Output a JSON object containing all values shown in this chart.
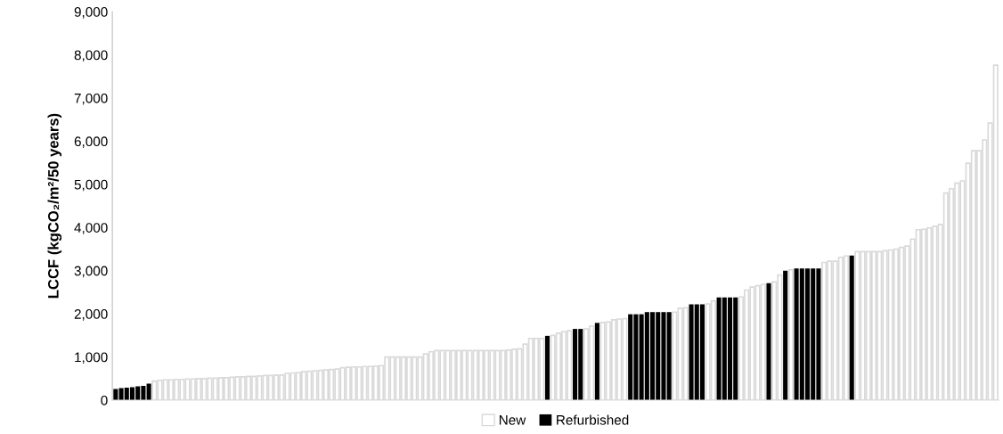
{
  "chart_data": {
    "type": "bar",
    "ylabel": "LCCF (kgCO₂/m²/50 years)",
    "categories": [
      null,
      null,
      null,
      null,
      null,
      null,
      null,
      null,
      null,
      null,
      null,
      null,
      null,
      null,
      null,
      null,
      null,
      null,
      null,
      null,
      null,
      null,
      null,
      null,
      null,
      null,
      null,
      null,
      null,
      null,
      null,
      null,
      null,
      null,
      null,
      null,
      null,
      null,
      null,
      null,
      null,
      null,
      null,
      null,
      null,
      null,
      null,
      null,
      null,
      null,
      null,
      null,
      null,
      null,
      null,
      null,
      null,
      null,
      null,
      null,
      null,
      null,
      null,
      null,
      null,
      null,
      null,
      null,
      null,
      null,
      null,
      null,
      null,
      null,
      null,
      null,
      null,
      null,
      null,
      null,
      null,
      null,
      null,
      null,
      null,
      null,
      null,
      null,
      null,
      null,
      null,
      null,
      null,
      null,
      null,
      null,
      null,
      null,
      null,
      null,
      null,
      null,
      null,
      null,
      null,
      null,
      null,
      null,
      null,
      null,
      null,
      null,
      null,
      null,
      null,
      null,
      null,
      null,
      null,
      null,
      null,
      null,
      null,
      null,
      null,
      null,
      null,
      null,
      null,
      null,
      null,
      null,
      null,
      null,
      null,
      null,
      null,
      null,
      null,
      null,
      null,
      null,
      null,
      null,
      null,
      null,
      null,
      null,
      null,
      null,
      null,
      null,
      null,
      null,
      null,
      null,
      null,
      null,
      null,
      null
    ],
    "series": [
      {
        "name": "New",
        "color": "#d9d9d9",
        "values": [
          null,
          null,
          null,
          null,
          null,
          null,
          null,
          440,
          460,
          470,
          470,
          480,
          480,
          490,
          490,
          500,
          500,
          510,
          510,
          520,
          520,
          530,
          540,
          540,
          550,
          550,
          560,
          570,
          570,
          580,
          580,
          620,
          630,
          640,
          660,
          670,
          680,
          690,
          700,
          710,
          720,
          750,
          760,
          770,
          770,
          780,
          780,
          790,
          800,
          1000,
          1000,
          1000,
          1000,
          1000,
          1000,
          1000,
          1070,
          1120,
          1150,
          1150,
          1150,
          1150,
          1150,
          1150,
          1150,
          1150,
          1150,
          1150,
          1150,
          1150,
          1150,
          1160,
          1180,
          1190,
          1300,
          1430,
          1430,
          1430,
          null,
          1500,
          1550,
          1590,
          1610,
          null,
          null,
          1650,
          1720,
          null,
          1800,
          1810,
          1860,
          1880,
          1890,
          null,
          null,
          null,
          null,
          null,
          null,
          null,
          null,
          2040,
          2130,
          2140,
          null,
          null,
          null,
          2230,
          2300,
          null,
          null,
          null,
          null,
          2390,
          2550,
          2620,
          2650,
          2680,
          null,
          2740,
          2900,
          null,
          3020,
          null,
          null,
          null,
          null,
          null,
          3190,
          3220,
          3220,
          3310,
          3340,
          null,
          3440,
          3440,
          3440,
          3440,
          3440,
          3460,
          3480,
          3500,
          3540,
          3570,
          3730,
          3950,
          3960,
          3990,
          4030,
          4070,
          4800,
          4900,
          5030,
          5080,
          5490,
          5780,
          5780,
          6030,
          6420,
          7760
        ]
      },
      {
        "name": "Refurbished",
        "color": "#000000",
        "values": [
          260,
          280,
          290,
          300,
          320,
          330,
          380,
          null,
          null,
          null,
          null,
          null,
          null,
          null,
          null,
          null,
          null,
          null,
          null,
          null,
          null,
          null,
          null,
          null,
          null,
          null,
          null,
          null,
          null,
          null,
          null,
          null,
          null,
          null,
          null,
          null,
          null,
          null,
          null,
          null,
          null,
          null,
          null,
          null,
          null,
          null,
          null,
          null,
          null,
          null,
          null,
          null,
          null,
          null,
          null,
          null,
          null,
          null,
          null,
          null,
          null,
          null,
          null,
          null,
          null,
          null,
          null,
          null,
          null,
          null,
          null,
          null,
          null,
          null,
          null,
          null,
          null,
          null,
          1490,
          null,
          null,
          null,
          null,
          1650,
          1650,
          null,
          null,
          1790,
          null,
          null,
          null,
          null,
          null,
          1990,
          1990,
          1990,
          2040,
          2040,
          2040,
          2040,
          2040,
          null,
          null,
          null,
          2220,
          2220,
          2220,
          null,
          null,
          2380,
          2380,
          2380,
          2380,
          null,
          null,
          null,
          null,
          null,
          2710,
          null,
          null,
          3000,
          null,
          3050,
          3050,
          3050,
          3050,
          3050,
          null,
          null,
          null,
          null,
          null,
          3350,
          null,
          null,
          null,
          null,
          null,
          null,
          null,
          null,
          null,
          null,
          null,
          null,
          null,
          null,
          null,
          null,
          null,
          null,
          null,
          null,
          null,
          null,
          null,
          null,
          null,
          null
        ]
      }
    ],
    "ylim": [
      0,
      9000
    ],
    "yticks": [
      {
        "value": 0,
        "label": "0"
      },
      {
        "value": 1000,
        "label": "1,000"
      },
      {
        "value": 2000,
        "label": "2,000"
      },
      {
        "value": 3000,
        "label": "3,000"
      },
      {
        "value": 4000,
        "label": "4,000"
      },
      {
        "value": 5000,
        "label": "5,000"
      },
      {
        "value": 6000,
        "label": "6,000"
      },
      {
        "value": 7000,
        "label": "7,000"
      },
      {
        "value": 8000,
        "label": "8,000"
      },
      {
        "value": 9000,
        "label": "9,000"
      }
    ],
    "legend": "bottom",
    "grid": false
  }
}
